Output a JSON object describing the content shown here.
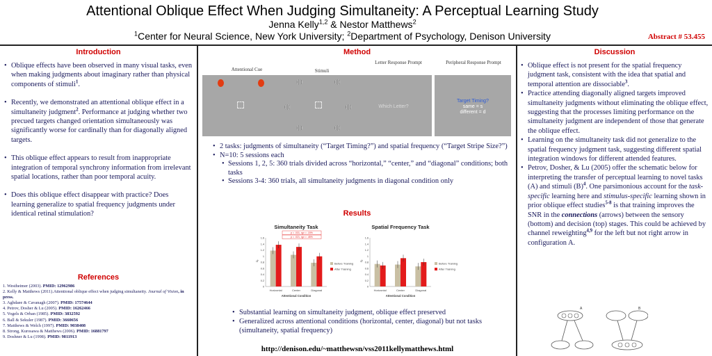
{
  "header": {
    "title": "Attentional Oblique Effect When Judging Simultaneity: A Perceptual Learning Study",
    "authors_a": "Jenna Kelly",
    "authors_a_sup": "1,2",
    "authors_mid": " & Nestor Matthews",
    "authors_b_sup": "2",
    "affil_sup1": "1",
    "affil_1": "Center for Neural Science, New York University; ",
    "affil_sup2": "2",
    "affil_2": "Department of Psychology, Denison University",
    "abstract": "Abstract # 53.455"
  },
  "sections": {
    "introduction": "Introduction",
    "method": "Method",
    "results": "Results",
    "discussion": "Discussion",
    "references": "References"
  },
  "intro": [
    {
      "text": "Oblique effects have been observed in many visual tasks, even when making judgments about imaginary rather than physical components of stimuli",
      "sup": "1",
      "end": "."
    },
    {
      "text": "Recently, we demonstrated an attentional oblique effect in a simultaneity judgment",
      "sup": "2",
      "end": ".  Performance at judging whether two precued targets changed orientation simultaneously was significantly worse for cardinally than for diagonally aligned targets."
    },
    {
      "text": "This oblique effect appears to result from inappropriate integration of temporal synchrony information from irrelevant spatial locations, rather than poor temporal acuity.",
      "sup": "",
      "end": ""
    },
    {
      "text": "Does this oblique effect disappear with practice? Does learning generalize to spatial frequency judgments under identical retinal stimulation?",
      "sup": "",
      "end": ""
    }
  ],
  "references": [
    {
      "text": "1. Westheimer (2003). ",
      "pmid": "PMID: 12962986"
    },
    {
      "text": "2. Kelly & Matthews (2011).Attentional oblique effect when judging simultaneity. ",
      "journal": "Journal of Vision",
      "pmid": ", in press."
    },
    {
      "text": "3. Aghdaee & Cavanagh (2007). ",
      "pmid": "PMID: 17574644"
    },
    {
      "text": "4. Petrov, Dosher & Lu (2005). ",
      "pmid": "PMID: 16262466"
    },
    {
      "text": "5. Vogels & Orban (1985). ",
      "pmid": "PMID: 3832592"
    },
    {
      "text": "6. Ball & Sekuler (1987). ",
      "pmid": "PMID: 3660656"
    },
    {
      "text": "7. Matthews & Welch (1997). ",
      "pmid": "PMID: 9038408"
    },
    {
      "text": "8. Strong, Kurosawa & Matthews (2006). ",
      "pmid": "PMID: 16881797"
    },
    {
      "text": "9. Doshner & Lu (1998). ",
      "pmid": "PMID: 9811913"
    }
  ],
  "method": {
    "panel_labels": [
      "Attentional Cue",
      "Stimuli",
      "Letter Response Prompt",
      "Peripheral Response Prompt"
    ],
    "prompt_letter": "Which Letter?",
    "prompt_timing": [
      "Target Timing?",
      "same = s",
      "different = d"
    ],
    "bullets": [
      "2 tasks: judgments of simultaneity (“Target Timing?”) and spatial frequency (“Target Stripe Size?”)",
      "N=10:  5 sessions each"
    ],
    "sub_bullets": [
      "Sessions 1, 2, 5: 360 trials divided across “horizontal,” “center,” and “diagonal” conditions; both tasks",
      "Sessions 3-4: 360 trials, all simultaneity judgments in diagonal condition only"
    ]
  },
  "results": {
    "bullets": [
      "Substantial learning on simultaneity judgment, oblique effect preserved",
      "Generalized across attentional conditions (horizontal, center, diagonal) but not tasks (simultaneity, spatial frequency)"
    ]
  },
  "chart_data": [
    {
      "type": "bar",
      "title": "Simultaneity Task",
      "categories": [
        "Horizontal",
        "Center",
        "Diagonal"
      ],
      "xlabel": "Attentional Condition",
      "ylabel": "d'",
      "ylim": [
        0,
        1.6
      ],
      "yticks": [
        "0",
        "0.2",
        "0.4",
        "0.6",
        "0.8",
        "1",
        "1.2",
        "1.4",
        "1.6"
      ],
      "series": [
        {
          "name": "Before Training",
          "values": [
            1.18,
            1.04,
            0.78
          ],
          "color": "#c9bfa3"
        },
        {
          "name": "After Training",
          "values": [
            1.37,
            1.3,
            0.99
          ],
          "color": "#e31b1b"
        }
      ],
      "annotations": [
        "p = .031, ηp² = .15%",
        "p = .021, ηp² = .45%"
      ]
    },
    {
      "type": "bar",
      "title": "Spatial Frequency Task",
      "categories": [
        "Horizontal",
        "Center",
        "Diagonal"
      ],
      "xlabel": "Attentional Condition",
      "ylabel": "d'",
      "ylim": [
        0,
        1.6
      ],
      "yticks": [
        "0",
        "0.2",
        "0.4",
        "0.6",
        "0.8",
        "1",
        "1.2",
        "1.4",
        "1.6"
      ],
      "series": [
        {
          "name": "Before Training",
          "values": [
            0.74,
            0.72,
            0.66
          ],
          "color": "#c9bfa3"
        },
        {
          "name": "After Training",
          "values": [
            0.69,
            0.93,
            0.8
          ],
          "color": "#e31b1b"
        }
      ]
    }
  ],
  "discussion": [
    {
      "parts": [
        [
          "t",
          "Oblique effect is not present for the spatial frequency judgment task, consistent with the idea that spatial and temporal attention are dissociable"
        ],
        [
          "s",
          "3"
        ],
        [
          "t",
          "."
        ]
      ]
    },
    {
      "parts": [
        [
          "t",
          "Practice attending diagonally aligned targets improved simultaneity judgments without eliminating the oblique effect, suggesting that the processes limiting performance on the simultaneity judgment are independent of those that generate the oblique effect."
        ]
      ]
    },
    {
      "parts": [
        [
          "t",
          "Learning on the simultaneity task did not generalize to the spatial frequency judgment task, suggesting different spatial integration windows for different attended features."
        ]
      ]
    },
    {
      "parts": [
        [
          "t",
          "Petrov, Dosher, & Lu (2005) offer the schematic below for interpreting the transfer of perceptual learning to novel tasks (A) and stimuli (B)"
        ],
        [
          "s",
          "4"
        ],
        [
          "t",
          ". One parsimonious account for the "
        ],
        [
          "i",
          "task-specific"
        ],
        [
          "t",
          " learning here and "
        ],
        [
          "i",
          "stimulus-specific"
        ],
        [
          "t",
          " learning shown in prior oblique effect studies"
        ],
        [
          "s",
          "5-8"
        ],
        [
          "t",
          " is that training improves the SNR in the "
        ],
        [
          "bi",
          "connections"
        ],
        [
          "t",
          " (arrows) between the sensory (bottom) and decision (top) stages. This could be achieved by channel reweighting"
        ],
        [
          "s",
          "4,9"
        ],
        [
          "t",
          " for the left but not right arrow in configuration A."
        ]
      ]
    }
  ],
  "diagram_labels": [
    "A",
    "B"
  ],
  "url": "http://denison.edu/~matthewsn/vss2011kellymatthews.html"
}
